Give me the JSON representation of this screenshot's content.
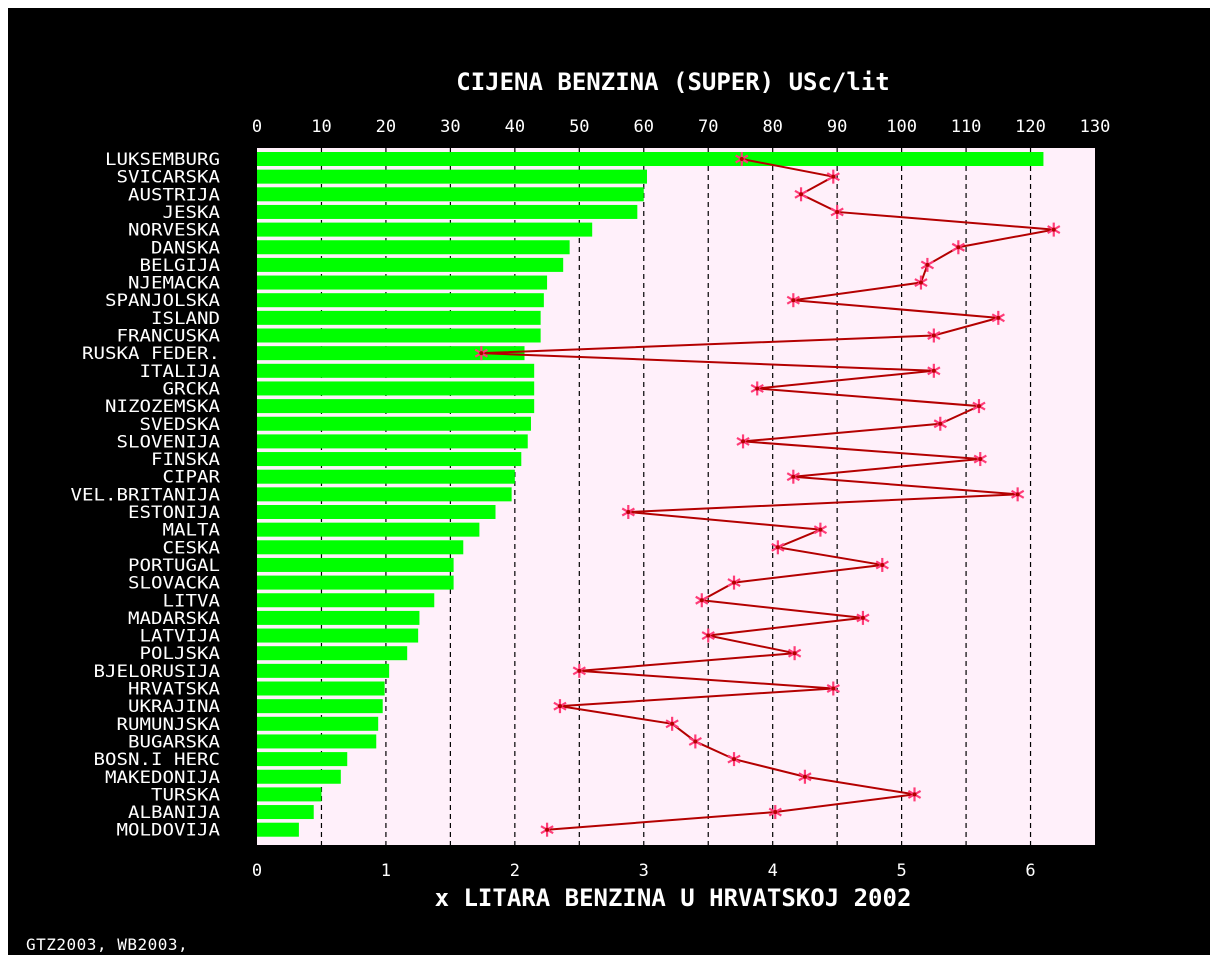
{
  "chart_data": {
    "type": "bar",
    "title": "CIJENA BENZINA (SUPER) USc/lit",
    "xlabel": "x LITARA BENZINA U HRVATSKOJ 2002",
    "top_axis": {
      "range": [
        0,
        130
      ],
      "ticks": [
        "0",
        "10",
        "20",
        "30",
        "40",
        "50",
        "60",
        "70",
        "80",
        "90",
        "100",
        "110",
        "120",
        "130"
      ]
    },
    "bottom_axis": {
      "range": [
        0,
        6.5
      ],
      "ticks": [
        "0",
        "1",
        "2",
        "3",
        "4",
        "5",
        "6"
      ]
    },
    "grid": true,
    "colors": {
      "background": "#000000",
      "plot_area": "#fff0fa",
      "bars": "#00ff00",
      "line": "#b40000",
      "markers": "#ff3c78",
      "text": "#ffffff"
    },
    "categories": [
      "LUKSEMBURG",
      "SVICARSKA",
      "AUSTRIJA",
      "JESKA",
      "NORVESKA",
      "DANSKA",
      "BELGIJA",
      "NJEMACKA",
      "SPANJOLSKA",
      "ISLAND",
      "FRANCUSKA",
      "RUSKA FEDER.",
      "ITALIJA",
      "GRCKA",
      "NIZOZEMSKA",
      "SVEDSKA",
      "SLOVENIJA",
      "FINSKA",
      "CIPAR",
      "VEL.BRITANIJA",
      "ESTONIJA",
      "MALTA",
      "CESKA",
      "PORTUGAL",
      "SLOVACKA",
      "LITVA",
      "MADARSKA",
      "LATVIJA",
      "POLJSKA",
      "BJELORUSIJA",
      "HRVATSKA",
      "UKRAJINA",
      "RUMUNJSKA",
      "BUGARSKA",
      "BOSN.I HERC",
      "MAKEDONIJA",
      "TURSKA",
      "ALBANIJA",
      "MOLDOVIJA"
    ],
    "series": [
      {
        "axis": "top",
        "values": [
          122,
          60.5,
          60,
          59,
          52,
          48.5,
          47.5,
          45,
          44.5,
          44,
          44,
          41.5,
          43,
          43,
          43,
          42.5,
          42,
          41,
          40,
          39.5,
          37,
          34.5,
          32,
          30.5,
          30.5,
          27.5,
          25.2,
          25,
          23.3,
          20.5,
          19.8,
          19.5,
          18.8,
          18.5,
          14,
          13,
          10,
          8.8,
          6.5
        ]
      },
      {
        "axis": "bottom",
        "values": [
          3.76,
          4.47,
          4.22,
          4.5,
          6.18,
          5.44,
          5.2,
          5.15,
          4.16,
          5.75,
          5.25,
          1.74,
          5.25,
          3.88,
          5.6,
          5.3,
          3.77,
          5.61,
          4.16,
          5.9,
          2.88,
          4.37,
          4.04,
          4.85,
          3.7,
          3.45,
          4.7,
          3.5,
          4.17,
          2.5,
          4.47,
          2.35,
          3.22,
          3.4,
          3.7,
          4.25,
          5.1,
          4.02,
          2.25
        ]
      }
    ]
  },
  "footnote": "GTZ2003, WB2003,"
}
